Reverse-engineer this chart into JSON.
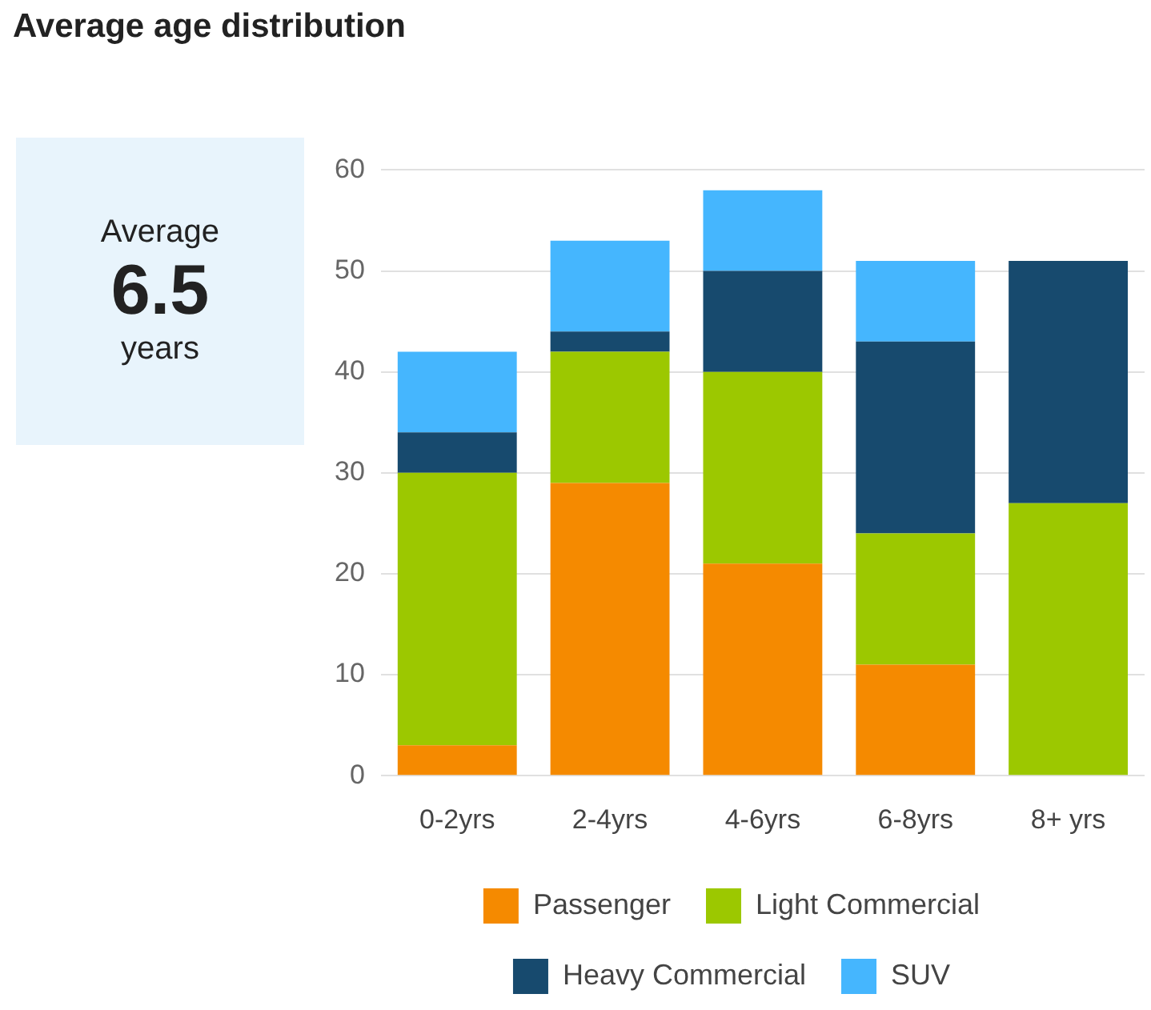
{
  "chart_data": [
    {
      "type": "other",
      "annotations": [
        "Average",
        "6.5",
        "years"
      ]
    },
    {
      "type": "bar",
      "title": "Average age distribution",
      "categories": [
        "0-2yrs",
        "2-4yrs",
        "4-6yrs",
        "6-8yrs",
        "8+ yrs"
      ],
      "stacked": true,
      "series": [
        {
          "name": "Passenger",
          "color": "#f58a00",
          "values": [
            3,
            29,
            21,
            11,
            0
          ]
        },
        {
          "name": "Light Commercial",
          "color": "#9cc800",
          "values": [
            27,
            13,
            19,
            13,
            27
          ]
        },
        {
          "name": "Heavy Commercial",
          "color": "#174a6e",
          "values": [
            4,
            2,
            10,
            19,
            24
          ]
        },
        {
          "name": "SUV",
          "color": "#45b6fe",
          "values": [
            8,
            9,
            8,
            8,
            0
          ]
        }
      ],
      "ylim": [
        0,
        60
      ],
      "yticks": [
        0,
        10,
        20,
        30,
        40,
        50,
        60
      ],
      "grid": "y",
      "legend": "bottom"
    }
  ]
}
